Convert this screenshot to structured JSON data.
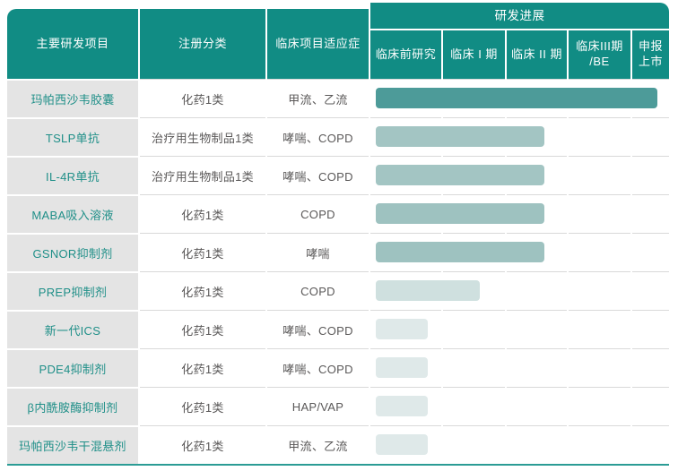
{
  "table": {
    "columns": {
      "project": "主要研发项目",
      "category": "注册分类",
      "indication": "临床项目适应症",
      "progress_group": "研发进展",
      "stages": [
        "临床前研究",
        "临床 I 期",
        "临床 II 期",
        "临床III期\n/BE",
        "申报\n上市"
      ]
    },
    "rows": [
      {
        "project": "玛帕西沙韦胶囊",
        "category": "化药1类",
        "indication": "甲流、乙流",
        "stage": "申报上市",
        "bar_style": "width:314px;background:#4D9B99"
      },
      {
        "project": "TSLP单抗",
        "category": "治疗用生物制品1类",
        "indication": "哮喘、COPD",
        "stage": "临床II期",
        "bar_style": "width:188px;background:#A3C5C3"
      },
      {
        "project": "IL-4R单抗",
        "category": "治疗用生物制品1类",
        "indication": "哮喘、COPD",
        "stage": "临床II期",
        "bar_style": "width:188px;background:#A3C5C3"
      },
      {
        "project": "MABA吸入溶液",
        "category": "化药1类",
        "indication": "COPD",
        "stage": "临床II期",
        "bar_style": "width:188px;background:#9EC2C0"
      },
      {
        "project": "GSNOR抑制剂",
        "category": "化药1类",
        "indication": "哮喘",
        "stage": "临床II期",
        "bar_style": "width:188px;background:#9EC2C0"
      },
      {
        "project": "PREP抑制剂",
        "category": "化药1类",
        "indication": "COPD",
        "stage": "临床I期",
        "bar_style": "width:116px;background:#CFE0DF"
      },
      {
        "project": "新一代ICS",
        "category": "化药1类",
        "indication": "哮喘、COPD",
        "stage": "临床前研究",
        "bar_style": "width:58px;background:#DFE9E9"
      },
      {
        "project": "PDE4抑制剂",
        "category": "化药1类",
        "indication": "哮喘、COPD",
        "stage": "临床前研究",
        "bar_style": "width:58px;background:#DFE9E9"
      },
      {
        "project": "β内酰胺酶抑制剂",
        "category": "化药1类",
        "indication": "HAP/VAP",
        "stage": "临床前研究",
        "bar_style": "width:58px;background:#DFE9E9"
      },
      {
        "project": "玛帕西沙韦干混悬剂",
        "category": "化药1类",
        "indication": "甲流、乙流",
        "stage": "临床前研究",
        "bar_style": "width:58px;background:#DFE9E9"
      }
    ]
  },
  "colors": {
    "header_teal": "#118C84",
    "bottom_line_teal": "#2B9C95",
    "project_col_bg": "#E4E4E4",
    "project_text": "#1F8F88",
    "body_text": "#5A5858",
    "separator": "#D9D9D9",
    "bar_submitted": "#4D9B99",
    "bar_phase2": "#A3C5C3",
    "bar_phase1": "#CFE0DF",
    "bar_preclinical": "#DFE9E9"
  },
  "chart_data": {
    "type": "bar",
    "orientation": "horizontal",
    "title": "研发进展",
    "stage_axis": [
      "临床前研究",
      "临床I期",
      "临床II期",
      "临床III期/BE",
      "申报上市"
    ],
    "categories": [
      "玛帕西沙韦胶囊",
      "TSLP单抗",
      "IL-4R单抗",
      "MABA吸入溶液",
      "GSNOR抑制剂",
      "PREP抑制剂",
      "新一代ICS",
      "PDE4抑制剂",
      "β内酰胺酶抑制剂",
      "玛帕西沙韦干混悬剂"
    ],
    "stage_reached": [
      "申报上市",
      "临床II期",
      "临床II期",
      "临床II期",
      "临床II期",
      "临床I期",
      "临床前研究",
      "临床前研究",
      "临床前研究",
      "临床前研究"
    ],
    "bar_fraction_of_timeline": [
      0.94,
      0.56,
      0.56,
      0.56,
      0.56,
      0.35,
      0.17,
      0.17,
      0.17,
      0.17
    ],
    "legend": "none",
    "grid": "row separators only"
  }
}
